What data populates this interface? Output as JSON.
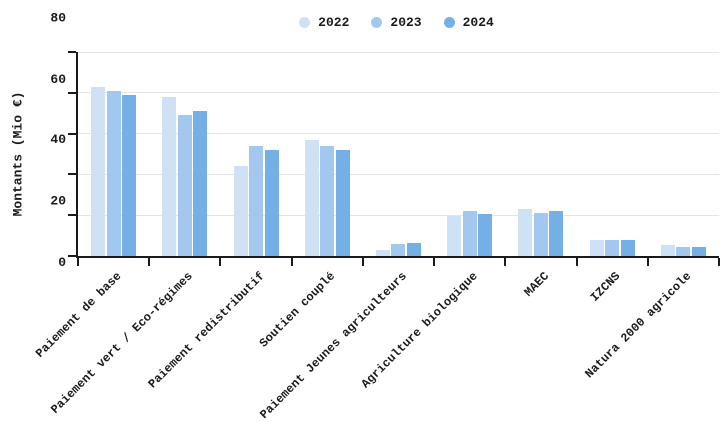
{
  "chart_data": {
    "type": "bar",
    "title": "",
    "xlabel": "",
    "ylabel": "Montants (Mio €)",
    "ylim": [
      0,
      100
    ],
    "yticks": [
      0,
      20,
      40,
      60,
      80,
      100
    ],
    "grid": true,
    "legend_position": "top-center",
    "categories": [
      "Paiement de base",
      "Paiement vert / Eco-régimes",
      "Paiement redistributif",
      "Soutien couplé",
      "Paiement Jeunes agriculteurs",
      "Agriculture biologique",
      "MAEC",
      "IZCNS",
      "Natura 2000 agricole"
    ],
    "series": [
      {
        "name": "2022",
        "color": "#cfe1f5",
        "values": [
          83,
          78,
          44,
          57,
          3,
          19.5,
          23,
          8,
          5.5
        ]
      },
      {
        "name": "2023",
        "color": "#a2c8ef",
        "values": [
          81,
          69,
          54,
          54,
          6,
          22,
          21,
          8,
          4.5
        ]
      },
      {
        "name": "2024",
        "color": "#74b0e6",
        "values": [
          79,
          71,
          52,
          52,
          6.5,
          20.5,
          22,
          8,
          4.5
        ]
      }
    ]
  },
  "colors": {
    "axis": "#1a1a1a",
    "grid": "#e4e4e4",
    "text": "#1a1a1a",
    "background": "#ffffff"
  }
}
